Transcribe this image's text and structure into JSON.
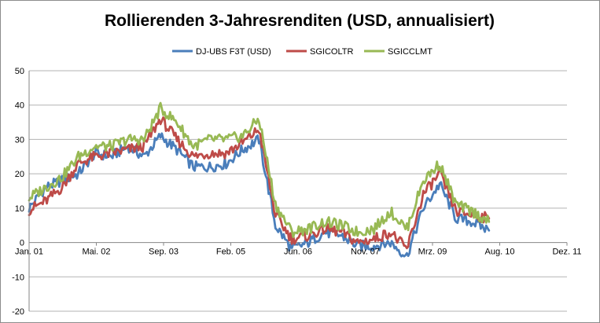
{
  "chart_data": {
    "type": "line",
    "title": "Rollierenden 3-Jahresrenditen (USD, annualisiert)",
    "xlabel": "",
    "ylabel": "",
    "ylim": [
      -20,
      50
    ],
    "yticks": [
      -20,
      -10,
      0,
      10,
      20,
      30,
      40,
      50
    ],
    "xticks": [
      "Jan. 01",
      "Mai. 02",
      "Sep. 03",
      "Feb. 05",
      "Jun. 06",
      "Nov. 07",
      "Mrz. 09",
      "Aug. 10",
      "Dez. 11"
    ],
    "xrange": [
      "2001-01",
      "2011-12"
    ],
    "grid": "horizontal",
    "legend_position": "top",
    "x": [
      "2001-01",
      "2001-05",
      "2001-09",
      "2002-01",
      "2002-05",
      "2002-09",
      "2003-01",
      "2003-05",
      "2003-09",
      "2004-01",
      "2004-05",
      "2004-09",
      "2005-01",
      "2005-05",
      "2005-09",
      "2006-01",
      "2006-05",
      "2006-09",
      "2007-01",
      "2007-05",
      "2007-09",
      "2008-01",
      "2008-05",
      "2008-09",
      "2009-01",
      "2009-05",
      "2009-09",
      "2010-01",
      "2010-05"
    ],
    "series": [
      {
        "name": "DJ-UBS F3T (USD)",
        "color": "#4a7ebb",
        "values": [
          10,
          16,
          18,
          20,
          26,
          25,
          28,
          25,
          31,
          27,
          22,
          22,
          23,
          27,
          30,
          5,
          -2,
          0,
          3,
          2,
          -1,
          -1,
          0,
          -4,
          10,
          17,
          7,
          6,
          3.5
        ]
      },
      {
        "name": "SGICOLTR",
        "color": "#be4b48",
        "values": [
          9.5,
          12,
          16,
          23,
          25,
          26,
          27,
          28,
          36,
          30,
          25,
          26,
          26,
          29,
          33,
          8,
          1,
          2,
          4,
          3,
          0,
          1,
          3,
          -2,
          14,
          20,
          9,
          8,
          7
        ]
      },
      {
        "name": "SGICCLMT",
        "color": "#98b954",
        "values": [
          13,
          16,
          19,
          25,
          28,
          28,
          30,
          30,
          39,
          35,
          28,
          30,
          30,
          31,
          36,
          11,
          3,
          4,
          6,
          5,
          3,
          4,
          9,
          4,
          18,
          23,
          11,
          9,
          6
        ]
      }
    ]
  }
}
